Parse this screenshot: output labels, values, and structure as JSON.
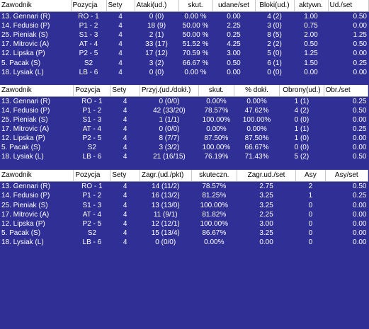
{
  "attack_table": {
    "headers": [
      "Zawodnik",
      "Pozycja",
      "Sety",
      "Ataki(ud.)",
      "skut.",
      "udane/set",
      "Bloki(ud.)",
      "aktywn.",
      "Ud./set"
    ],
    "rows": [
      [
        "13. Gennari (R)",
        "RO - 1",
        "4",
        "0 (0)",
        "0.00 %",
        "0.00",
        "4 (2)",
        "1.00",
        "0.50"
      ],
      [
        "14. Fedusio (P)",
        "P1 - 2",
        "4",
        "18 (9)",
        "50.00 %",
        "2.25",
        "3 (0)",
        "0.75",
        "0.00"
      ],
      [
        "25. Pieniak (S)",
        "S1 - 3",
        "4",
        "2 (1)",
        "50.00 %",
        "0.25",
        "8 (5)",
        "2.00",
        "1.25"
      ],
      [
        "17. Mitrovic (A)",
        "AT - 4",
        "4",
        "33 (17)",
        "51.52 %",
        "4.25",
        "2 (2)",
        "0.50",
        "0.50"
      ],
      [
        "12. Lipska (P)",
        "P2 - 5",
        "4",
        "17 (12)",
        "70.59 %",
        "3.00",
        "5 (0)",
        "1.25",
        "0.00"
      ],
      [
        "5. Pacak (S)",
        "S2",
        "4",
        "3 (2)",
        "66.67 %",
        "0.50",
        "6 (1)",
        "1.50",
        "0.25"
      ],
      [
        "18. Lysiak (L)",
        "LB - 6",
        "4",
        "0 (0)",
        "0.00 %",
        "0.00",
        "0 (0)",
        "0.00",
        "0.00"
      ]
    ]
  },
  "reception_table": {
    "headers": [
      "Zawodnik",
      "Pozycja",
      "Sety",
      "Przyj.(ud./dokł.)",
      "skut.",
      "% dokł.",
      "Obrony(ud.)",
      "Obr./set"
    ],
    "rows": [
      [
        "13. Gennari (R)",
        "RO - 1",
        "4",
        "0 (0/0)",
        "0.00%",
        "0.00%",
        "1 (1)",
        "0.25"
      ],
      [
        "14. Fedusio (P)",
        "P1 - 2",
        "4",
        "42 (33/20)",
        "78.57%",
        "47.62%",
        "4 (2)",
        "0.50"
      ],
      [
        "25. Pieniak (S)",
        "S1 - 3",
        "4",
        "1 (1/1)",
        "100.00%",
        "100.00%",
        "0 (0)",
        "0.00"
      ],
      [
        "17. Mitrovic (A)",
        "AT - 4",
        "4",
        "0 (0/0)",
        "0.00%",
        "0.00%",
        "1 (1)",
        "0.25"
      ],
      [
        "12. Lipska (P)",
        "P2 - 5",
        "4",
        "8 (7/7)",
        "87.50%",
        "87.50%",
        "1 (0)",
        "0.00"
      ],
      [
        "5. Pacak (S)",
        "S2",
        "4",
        "3 (3/2)",
        "100.00%",
        "66.67%",
        "0 (0)",
        "0.00"
      ],
      [
        "18. Lysiak (L)",
        "LB - 6",
        "4",
        "21 (16/15)",
        "76.19%",
        "71.43%",
        "5 (2)",
        "0.50"
      ]
    ]
  },
  "serve_table": {
    "headers": [
      "Zawodnik",
      "Pozycja",
      "Sety",
      "Zagr.(ud./pkt)",
      "skuteczn.",
      "Zagr.ud./set",
      "Asy",
      "Asy/set"
    ],
    "rows": [
      [
        "13. Gennari (R)",
        "RO - 1",
        "4",
        "14 (11/2)",
        "78.57%",
        "2.75",
        "2",
        "0.50"
      ],
      [
        "14. Fedusio (P)",
        "P1 - 2",
        "4",
        "16 (13/2)",
        "81.25%",
        "3.25",
        "1",
        "0.25"
      ],
      [
        "25. Pieniak (S)",
        "S1 - 3",
        "4",
        "13 (13/0)",
        "100.00%",
        "3.25",
        "0",
        "0.00"
      ],
      [
        "17. Mitrovic (A)",
        "AT - 4",
        "4",
        "11 (9/1)",
        "81.82%",
        "2.25",
        "0",
        "0.00"
      ],
      [
        "12. Lipska (P)",
        "P2 - 5",
        "4",
        "12 (12/1)",
        "100.00%",
        "3.00",
        "0",
        "0.00"
      ],
      [
        "5. Pacak (S)",
        "S2",
        "4",
        "15 (13/4)",
        "86.67%",
        "3.25",
        "0",
        "0.00"
      ],
      [
        "18. Lysiak (L)",
        "LB - 6",
        "4",
        "0 (0/0)",
        "0.00%",
        "0.00",
        "0",
        "0.00"
      ]
    ]
  }
}
